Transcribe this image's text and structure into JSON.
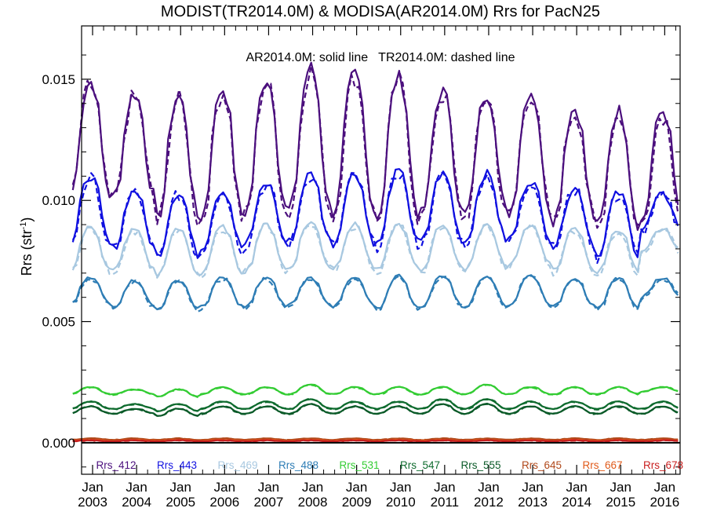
{
  "chart_data": {
    "type": "line",
    "title": "MODIST(TR2014.0M) & MODISA(AR2014.0M)  Rrs for PacN25",
    "annotation": "AR2014.0M: solid line   TR2014.0M: dashed line",
    "ylabel": "Rrs (str",
    "ylabel_sup": "-1",
    "ylabel_close": ")",
    "xlabel": "",
    "ylim": [
      -0.0013,
      0.0172
    ],
    "xlim": [
      2002.75,
      2016.35
    ],
    "y_ticks": [
      0.0,
      0.005,
      0.01,
      0.015
    ],
    "y_tick_labels": [
      "0.000",
      "0.005",
      "0.010",
      "0.015"
    ],
    "x_ticks": [
      2003,
      2004,
      2005,
      2006,
      2007,
      2008,
      2009,
      2010,
      2011,
      2012,
      2013,
      2014,
      2015,
      2016
    ],
    "x_tick_month": "Jan",
    "x_tick_years": [
      "2003",
      "2004",
      "2005",
      "2006",
      "2007",
      "2008",
      "2009",
      "2010",
      "2011",
      "2012",
      "2013",
      "2014",
      "2015",
      "2016"
    ],
    "zero_line": true,
    "grid": false,
    "legend_placement": "bottom inside plot",
    "line_styles": {
      "AR2014.0M": "solid",
      "TR2014.0M": "dashed"
    },
    "series": [
      {
        "name": "Rrs_412",
        "color": "#4B0F7D",
        "mean": 0.012,
        "amplitude": 0.0023,
        "peak_year": [
          2002.95,
          2003.95,
          2004.95,
          2005.95,
          2006.95,
          2007.95,
          2008.95,
          2009.95,
          2010.95,
          2011.95,
          2012.95,
          2013.95,
          2014.95,
          2015.95
        ],
        "peaks": [
          0.0149,
          0.0144,
          0.0143,
          0.0146,
          0.015,
          0.0155,
          0.0152,
          0.0151,
          0.0145,
          0.0144,
          0.0145,
          0.0138,
          0.0137,
          0.0137
        ],
        "troughs": [
          0.0101,
          0.0101,
          0.0092,
          0.0093,
          0.0095,
          0.0096,
          0.0095,
          0.0093,
          0.0094,
          0.0094,
          0.0095,
          0.0092,
          0.0089,
          0.0091
        ]
      },
      {
        "name": "Rrs_443",
        "color": "#1010E0",
        "peaks": [
          0.011,
          0.0104,
          0.0103,
          0.0104,
          0.0107,
          0.0111,
          0.0111,
          0.0112,
          0.0111,
          0.0111,
          0.0108,
          0.0105,
          0.0103,
          0.0102
        ],
        "troughs": [
          0.0081,
          0.008,
          0.0077,
          0.008,
          0.0082,
          0.0083,
          0.0082,
          0.0082,
          0.0083,
          0.0083,
          0.0084,
          0.0081,
          0.0077,
          0.0088
        ]
      },
      {
        "name": "Rrs_469",
        "color": "#A8C8E0",
        "peaks": [
          0.0089,
          0.0088,
          0.0088,
          0.0089,
          0.009,
          0.0091,
          0.009,
          0.009,
          0.009,
          0.009,
          0.009,
          0.0088,
          0.0088,
          0.0088
        ],
        "troughs": [
          0.0071,
          0.0071,
          0.0069,
          0.007,
          0.0071,
          0.0072,
          0.0072,
          0.0071,
          0.0071,
          0.0072,
          0.0073,
          0.0071,
          0.007,
          0.0078
        ]
      },
      {
        "name": "Rrs_488",
        "color": "#2E7DB5",
        "peaks": [
          0.0068,
          0.0067,
          0.0067,
          0.0068,
          0.0068,
          0.0068,
          0.0068,
          0.0069,
          0.0069,
          0.0069,
          0.0069,
          0.0068,
          0.0068,
          0.0068
        ],
        "troughs": [
          0.0057,
          0.0056,
          0.0055,
          0.0056,
          0.0056,
          0.0057,
          0.0056,
          0.0055,
          0.0056,
          0.0056,
          0.0057,
          0.0056,
          0.0055,
          0.006
        ]
      },
      {
        "name": "Rrs_531",
        "color": "#33CC33",
        "peaks": [
          0.0023,
          0.0022,
          0.0022,
          0.0023,
          0.0023,
          0.0024,
          0.0023,
          0.0023,
          0.0023,
          0.0024,
          0.0023,
          0.0023,
          0.0023,
          0.0023
        ],
        "troughs": [
          0.002,
          0.002,
          0.0019,
          0.002,
          0.002,
          0.002,
          0.002,
          0.002,
          0.002,
          0.002,
          0.002,
          0.002,
          0.002,
          0.0021
        ]
      },
      {
        "name": "Rrs_547",
        "color": "#0E6B2E",
        "peaks": [
          0.0017,
          0.0016,
          0.0016,
          0.0017,
          0.0017,
          0.0018,
          0.0017,
          0.0017,
          0.0018,
          0.0018,
          0.0017,
          0.0017,
          0.0017,
          0.0017
        ],
        "troughs": [
          0.0014,
          0.0014,
          0.0013,
          0.0014,
          0.0014,
          0.0014,
          0.0014,
          0.0014,
          0.0014,
          0.0014,
          0.0014,
          0.0014,
          0.0014,
          0.0014
        ]
      },
      {
        "name": "Rrs_555",
        "color": "#0A5A28",
        "peaks": [
          0.0015,
          0.0014,
          0.0014,
          0.0015,
          0.0015,
          0.0016,
          0.0015,
          0.0015,
          0.0016,
          0.0016,
          0.0015,
          0.0015,
          0.0015,
          0.0015
        ],
        "troughs": [
          0.0012,
          0.0012,
          0.0011,
          0.0012,
          0.0012,
          0.0012,
          0.0012,
          0.0012,
          0.0012,
          0.0012,
          0.0012,
          0.0012,
          0.0012,
          0.0012
        ]
      },
      {
        "name": "Rrs_645",
        "color": "#B0481A",
        "level": 0.00015,
        "amplitude": 3e-05
      },
      {
        "name": "Rrs_667",
        "color": "#E05A1A",
        "level": 0.0001,
        "amplitude": 2e-05
      },
      {
        "name": "Rrs_678",
        "color": "#C81E1E",
        "level": 8e-05,
        "amplitude": 2e-05
      }
    ]
  }
}
